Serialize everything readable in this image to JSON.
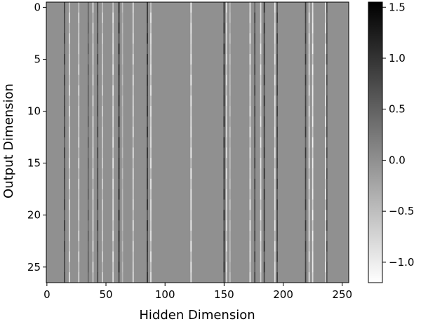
{
  "chart_data": {
    "type": "heatmap",
    "title": "",
    "xlabel": "Hidden Dimension",
    "ylabel": "Output Dimension",
    "xlim": [
      -0.5,
      255.5
    ],
    "ylim": [
      26.5,
      -0.5
    ],
    "n_rows": 27,
    "n_cols": 256,
    "background_value": 0.0,
    "x_ticks": [
      0,
      50,
      100,
      150,
      200,
      250
    ],
    "y_ticks": [
      0,
      5,
      10,
      15,
      20,
      25
    ],
    "colormap": "gray_r",
    "colorbar": {
      "vmin": -1.2,
      "vmax": 1.55,
      "ticks": [
        -1.0,
        -0.5,
        0.0,
        0.5,
        1.0,
        1.5
      ],
      "tick_labels": [
        "−1.0",
        "−0.5",
        "0.0",
        "0.5",
        "1.0",
        "1.5"
      ],
      "low_color": "#ffffff",
      "high_color": "#000000"
    },
    "active_columns": [
      {
        "col": 15,
        "sign": 1,
        "amp": 1.0
      },
      {
        "col": 19,
        "sign": -1,
        "amp": 1.0
      },
      {
        "col": 27,
        "sign": -1,
        "amp": 0.9
      },
      {
        "col": 35,
        "sign": 1,
        "amp": 0.6
      },
      {
        "col": 39,
        "sign": -1,
        "amp": 0.9
      },
      {
        "col": 43,
        "sign": 1,
        "amp": 0.9
      },
      {
        "col": 47,
        "sign": -1,
        "amp": 0.8
      },
      {
        "col": 56,
        "sign": -1,
        "amp": 1.0
      },
      {
        "col": 61,
        "sign": 1,
        "amp": 1.3
      },
      {
        "col": 64,
        "sign": -1,
        "amp": 0.5
      },
      {
        "col": 73,
        "sign": -1,
        "amp": 1.0
      },
      {
        "col": 85,
        "sign": 1,
        "amp": 1.2
      },
      {
        "col": 88,
        "sign": -1,
        "amp": 1.0
      },
      {
        "col": 122,
        "sign": -1,
        "amp": 1.1
      },
      {
        "col": 150,
        "sign": 1,
        "amp": 1.2
      },
      {
        "col": 152,
        "sign": -1,
        "amp": 0.9
      },
      {
        "col": 155,
        "sign": -1,
        "amp": 0.6
      },
      {
        "col": 172,
        "sign": -1,
        "amp": 1.1
      },
      {
        "col": 176,
        "sign": 1,
        "amp": 0.9
      },
      {
        "col": 181,
        "sign": -1,
        "amp": 1.0
      },
      {
        "col": 184,
        "sign": 1,
        "amp": 1.1
      },
      {
        "col": 193,
        "sign": -1,
        "amp": 1.0
      },
      {
        "col": 195,
        "sign": 1,
        "amp": 0.9
      },
      {
        "col": 219,
        "sign": 1,
        "amp": 1.0
      },
      {
        "col": 222,
        "sign": -1,
        "amp": 1.0
      },
      {
        "col": 225,
        "sign": -1,
        "amp": 1.1
      },
      {
        "col": 236,
        "sign": -1,
        "amp": 1.1
      },
      {
        "col": 237,
        "sign": 1,
        "amp": 0.8
      }
    ]
  }
}
